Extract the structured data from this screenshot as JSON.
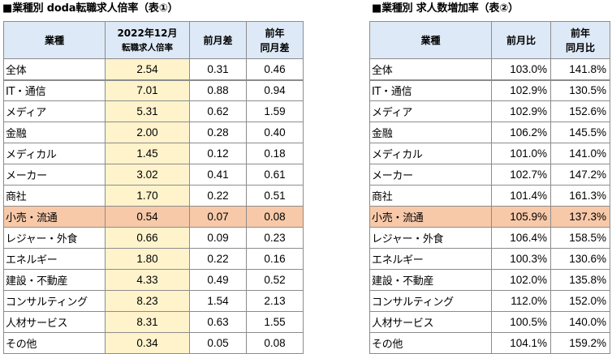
{
  "table1": {
    "title": "■業種別 doda転職求人倍率（表①）",
    "headers": {
      "industry": "業種",
      "rate_line1": "2022年12月",
      "rate_line2": "転職求人倍率",
      "mom": "前月差",
      "yoy_line1": "前年",
      "yoy_line2": "同月差"
    },
    "rows": [
      {
        "name": "全体",
        "rate": "2.54",
        "mom": "0.31",
        "yoy": "0.46"
      },
      {
        "name": "IT・通信",
        "rate": "7.01",
        "mom": "0.88",
        "yoy": "0.94"
      },
      {
        "name": "メディア",
        "rate": "5.31",
        "mom": "0.62",
        "yoy": "1.59"
      },
      {
        "name": "金融",
        "rate": "2.00",
        "mom": "0.28",
        "yoy": "0.40"
      },
      {
        "name": "メディカル",
        "rate": "1.45",
        "mom": "0.12",
        "yoy": "0.18"
      },
      {
        "name": "メーカー",
        "rate": "3.02",
        "mom": "0.41",
        "yoy": "0.61"
      },
      {
        "name": "商社",
        "rate": "1.70",
        "mom": "0.22",
        "yoy": "0.51"
      },
      {
        "name": "小売・流通",
        "rate": "0.54",
        "mom": "0.07",
        "yoy": "0.08"
      },
      {
        "name": "レジャー・外食",
        "rate": "0.66",
        "mom": "0.09",
        "yoy": "0.23"
      },
      {
        "name": "エネルギー",
        "rate": "1.80",
        "mom": "0.22",
        "yoy": "0.16"
      },
      {
        "name": "建設・不動産",
        "rate": "4.33",
        "mom": "0.49",
        "yoy": "0.52"
      },
      {
        "name": "コンサルティング",
        "rate": "8.23",
        "mom": "1.54",
        "yoy": "2.13"
      },
      {
        "name": "人材サービス",
        "rate": "8.31",
        "mom": "0.63",
        "yoy": "1.55"
      },
      {
        "name": "その他",
        "rate": "0.34",
        "mom": "0.05",
        "yoy": "0.08"
      }
    ]
  },
  "table2": {
    "title": "■業種別 求人数増加率（表②）",
    "headers": {
      "industry": "業種",
      "mom": "前月比",
      "yoy_line1": "前年",
      "yoy_line2": "同月比"
    },
    "rows": [
      {
        "name": "全体",
        "mom": "103.0%",
        "yoy": "141.8%"
      },
      {
        "name": "IT・通信",
        "mom": "102.9%",
        "yoy": "130.5%"
      },
      {
        "name": "メディア",
        "mom": "102.9%",
        "yoy": "152.6%"
      },
      {
        "name": "金融",
        "mom": "106.2%",
        "yoy": "145.5%"
      },
      {
        "name": "メディカル",
        "mom": "101.0%",
        "yoy": "141.0%"
      },
      {
        "name": "メーカー",
        "mom": "102.7%",
        "yoy": "147.2%"
      },
      {
        "name": "商社",
        "mom": "101.4%",
        "yoy": "161.3%"
      },
      {
        "name": "小売・流通",
        "mom": "105.9%",
        "yoy": "137.3%"
      },
      {
        "name": "レジャー・外食",
        "mom": "106.4%",
        "yoy": "158.5%"
      },
      {
        "name": "エネルギー",
        "mom": "100.3%",
        "yoy": "130.6%"
      },
      {
        "name": "建設・不動産",
        "mom": "102.0%",
        "yoy": "135.8%"
      },
      {
        "name": "コンサルティング",
        "mom": "112.0%",
        "yoy": "152.0%"
      },
      {
        "name": "人材サービス",
        "mom": "100.5%",
        "yoy": "140.0%"
      },
      {
        "name": "その他",
        "mom": "104.1%",
        "yoy": "159.2%"
      }
    ]
  },
  "highlight_row": "小売・流通",
  "colors": {
    "header_bg": "#dde9f6",
    "rate_bg": "#fff3cc",
    "highlight_bg": "#f7c9a9",
    "border": "#8c8c8c"
  }
}
